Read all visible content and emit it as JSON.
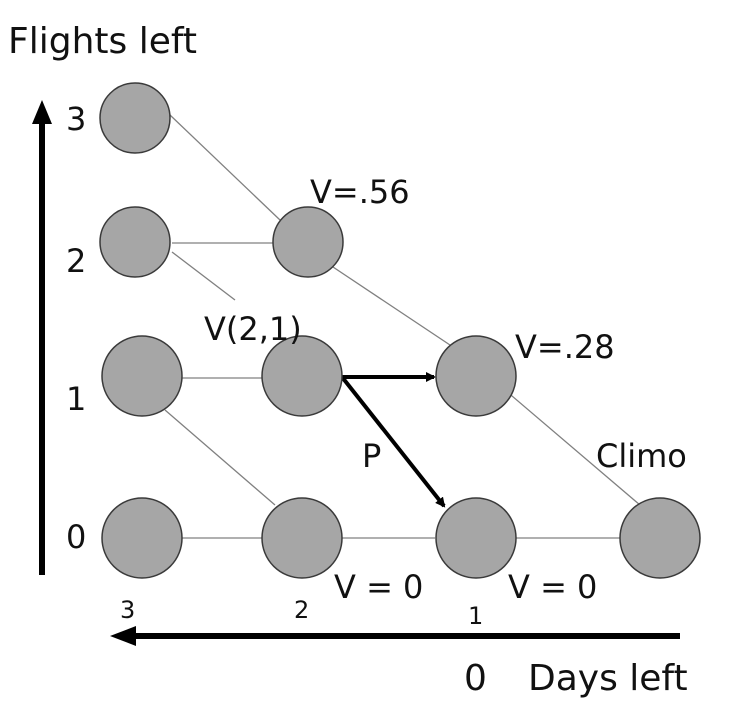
{
  "axis": {
    "y_title": "Flights left",
    "x_title": "Days left",
    "y_ticks": [
      "3",
      "2",
      "1",
      "0"
    ],
    "x_ticks": [
      "3",
      "2",
      "1",
      "0"
    ]
  },
  "annotations": {
    "v_056": "V=.56",
    "v_028": "V=.28",
    "v21": "V(2,1)",
    "p": "P",
    "climo": "Climo",
    "v0_a": "V = 0",
    "v0_b": "V = 0"
  },
  "colors": {
    "node_fill": "#a6a6a6",
    "node_stroke": "#3a3a3a",
    "edge": "#808080",
    "arrow": "#000000"
  }
}
